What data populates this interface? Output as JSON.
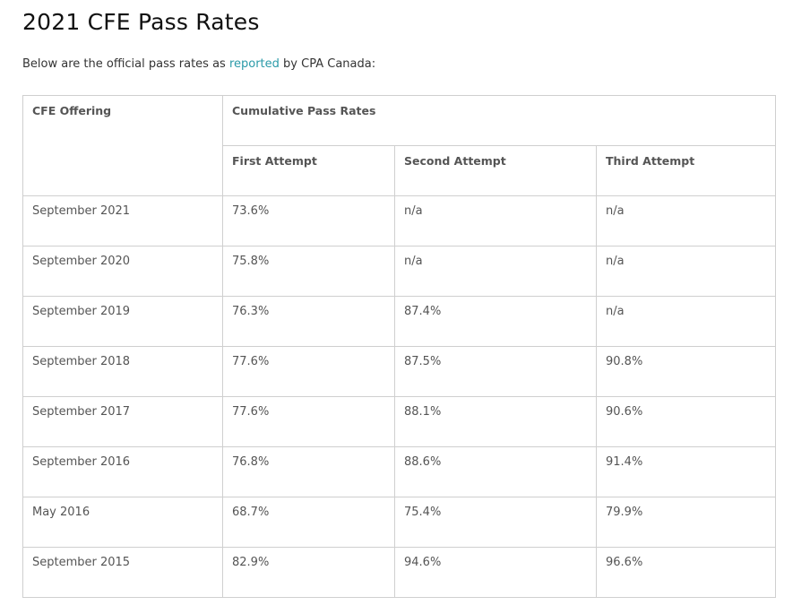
{
  "header": {
    "title": "2021 CFE Pass Rates"
  },
  "intro": {
    "before": "Below are the official pass rates as ",
    "link": "reported",
    "after": " by CPA Canada:"
  },
  "table": {
    "offering_header": "CFE Offering",
    "group_header": "Cumulative Pass Rates",
    "columns": [
      "First Attempt",
      "Second Attempt",
      "Third Attempt"
    ],
    "rows": [
      [
        "September 2021",
        "73.6%",
        "n/a",
        "n/a"
      ],
      [
        "September 2020",
        "75.8%",
        "n/a",
        "n/a"
      ],
      [
        "September 2019",
        "76.3%",
        "87.4%",
        "n/a"
      ],
      [
        "September 2018",
        "77.6%",
        "87.5%",
        "90.8%"
      ],
      [
        "September 2017",
        "77.6%",
        "88.1%",
        "90.6%"
      ],
      [
        "September 2016",
        "76.8%",
        "88.6%",
        "91.4%"
      ],
      [
        "May 2016",
        "68.7%",
        "75.4%",
        "79.9%"
      ],
      [
        "September 2015",
        "82.9%",
        "94.6%",
        "96.6%"
      ]
    ]
  }
}
